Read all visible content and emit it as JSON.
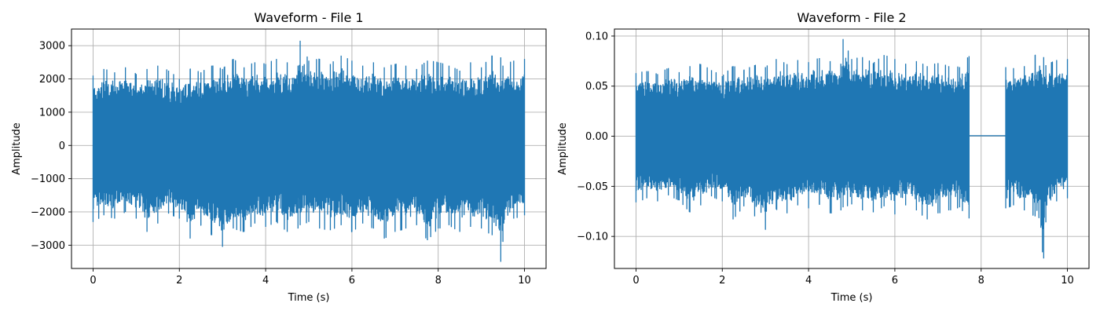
{
  "chart_data": [
    {
      "type": "line",
      "title": "Waveform - File 1",
      "xlabel": "Time (s)",
      "ylabel": "Amplitude",
      "xlim": [
        -0.5,
        10.5
      ],
      "ylim": [
        -3700,
        3500
      ],
      "xticks": [
        0,
        2,
        4,
        6,
        8,
        10
      ],
      "yticks": [
        -3000,
        -2000,
        -1000,
        0,
        1000,
        2000,
        3000
      ],
      "xtick_labels": [
        "0",
        "2",
        "4",
        "6",
        "8",
        "10"
      ],
      "ytick_labels": [
        "−3000",
        "−2000",
        "−1000",
        "0",
        "1000",
        "2000",
        "3000"
      ],
      "grid": true,
      "color": "#1f77b4",
      "series": [
        {
          "x": [
            0,
            0.25,
            0.5,
            0.75,
            1,
            1.25,
            1.5,
            1.75,
            2,
            2.25,
            2.5,
            2.75,
            3,
            3.25,
            3.5,
            3.75,
            4,
            4.25,
            4.5,
            4.75,
            4.8,
            5,
            5.25,
            5.5,
            5.75,
            6,
            6.25,
            6.5,
            6.75,
            7,
            7.25,
            7.5,
            7.75,
            8,
            8.25,
            8.5,
            8.75,
            9,
            9.25,
            9.45,
            9.5,
            9.75,
            10
          ],
          "upper_envelope": [
            2100,
            2300,
            2200,
            2350,
            2150,
            2300,
            2400,
            2250,
            2000,
            2300,
            2200,
            2400,
            2300,
            2600,
            2350,
            2500,
            2450,
            2600,
            2500,
            2400,
            3150,
            2550,
            2600,
            2450,
            2700,
            2550,
            2400,
            2500,
            2350,
            2450,
            2400,
            2300,
            2550,
            2500,
            2400,
            2250,
            2500,
            2350,
            2700,
            2650,
            2400,
            2550,
            2600
          ],
          "lower_envelope": [
            -2300,
            -2100,
            -2200,
            -2000,
            -2200,
            -2600,
            -2350,
            -2050,
            -2200,
            -2800,
            -2400,
            -2700,
            -3050,
            -2500,
            -2600,
            -2350,
            -2450,
            -2300,
            -2600,
            -2500,
            -2400,
            -2300,
            -2500,
            -2550,
            -2400,
            -2600,
            -2350,
            -2500,
            -2800,
            -2600,
            -2500,
            -2400,
            -2850,
            -2500,
            -2400,
            -2600,
            -2450,
            -2500,
            -2700,
            -3500,
            -2900,
            -2200,
            -2100
          ]
        }
      ]
    },
    {
      "type": "line",
      "title": "Waveform - File 2",
      "xlabel": "Time (s)",
      "ylabel": "Amplitude",
      "xlim": [
        -0.5,
        10.5
      ],
      "ylim": [
        -0.132,
        0.107
      ],
      "xticks": [
        0,
        2,
        4,
        6,
        8,
        10
      ],
      "yticks": [
        -0.1,
        -0.05,
        0,
        0.05,
        0.1
      ],
      "xtick_labels": [
        "0",
        "2",
        "4",
        "6",
        "8",
        "10"
      ],
      "ytick_labels": [
        "−0.10",
        "−0.05",
        "0.00",
        "0.05",
        "0.10"
      ],
      "grid": true,
      "color": "#1f77b4",
      "series": [
        {
          "x": [
            0,
            0.25,
            0.5,
            0.75,
            1,
            1.25,
            1.5,
            1.75,
            2,
            2.25,
            2.5,
            2.75,
            3,
            3.25,
            3.5,
            3.75,
            4,
            4.25,
            4.5,
            4.75,
            4.8,
            5,
            5.25,
            5.5,
            5.75,
            6,
            6.25,
            6.5,
            6.75,
            7,
            7.25,
            7.5,
            7.72
          ],
          "upper_envelope": [
            0.063,
            0.065,
            0.062,
            0.068,
            0.064,
            0.07,
            0.072,
            0.066,
            0.06,
            0.07,
            0.066,
            0.071,
            0.069,
            0.077,
            0.072,
            0.076,
            0.074,
            0.078,
            0.075,
            0.072,
            0.097,
            0.077,
            0.079,
            0.073,
            0.081,
            0.077,
            0.072,
            0.075,
            0.07,
            0.073,
            0.07,
            0.069,
            0.08
          ],
          "lower_envelope": [
            -0.066,
            -0.062,
            -0.065,
            -0.059,
            -0.064,
            -0.076,
            -0.069,
            -0.06,
            -0.065,
            -0.083,
            -0.07,
            -0.08,
            -0.093,
            -0.073,
            -0.077,
            -0.069,
            -0.072,
            -0.068,
            -0.077,
            -0.074,
            -0.071,
            -0.068,
            -0.074,
            -0.076,
            -0.07,
            -0.078,
            -0.069,
            -0.074,
            -0.083,
            -0.077,
            -0.074,
            -0.071,
            -0.082
          ]
        },
        {
          "x": [
            7.72,
            8.57
          ],
          "upper_envelope": [
            0.001,
            0.001
          ],
          "lower_envelope": [
            0.0,
            0.0
          ]
        },
        {
          "x": [
            8.57,
            8.75,
            9,
            9.25,
            9.45,
            9.5,
            9.75,
            10
          ],
          "upper_envelope": [
            0.069,
            0.068,
            0.07,
            0.081,
            0.079,
            0.071,
            0.076,
            0.077
          ],
          "lower_envelope": [
            -0.072,
            -0.069,
            -0.074,
            -0.08,
            -0.122,
            -0.086,
            -0.065,
            -0.062
          ]
        }
      ]
    }
  ]
}
